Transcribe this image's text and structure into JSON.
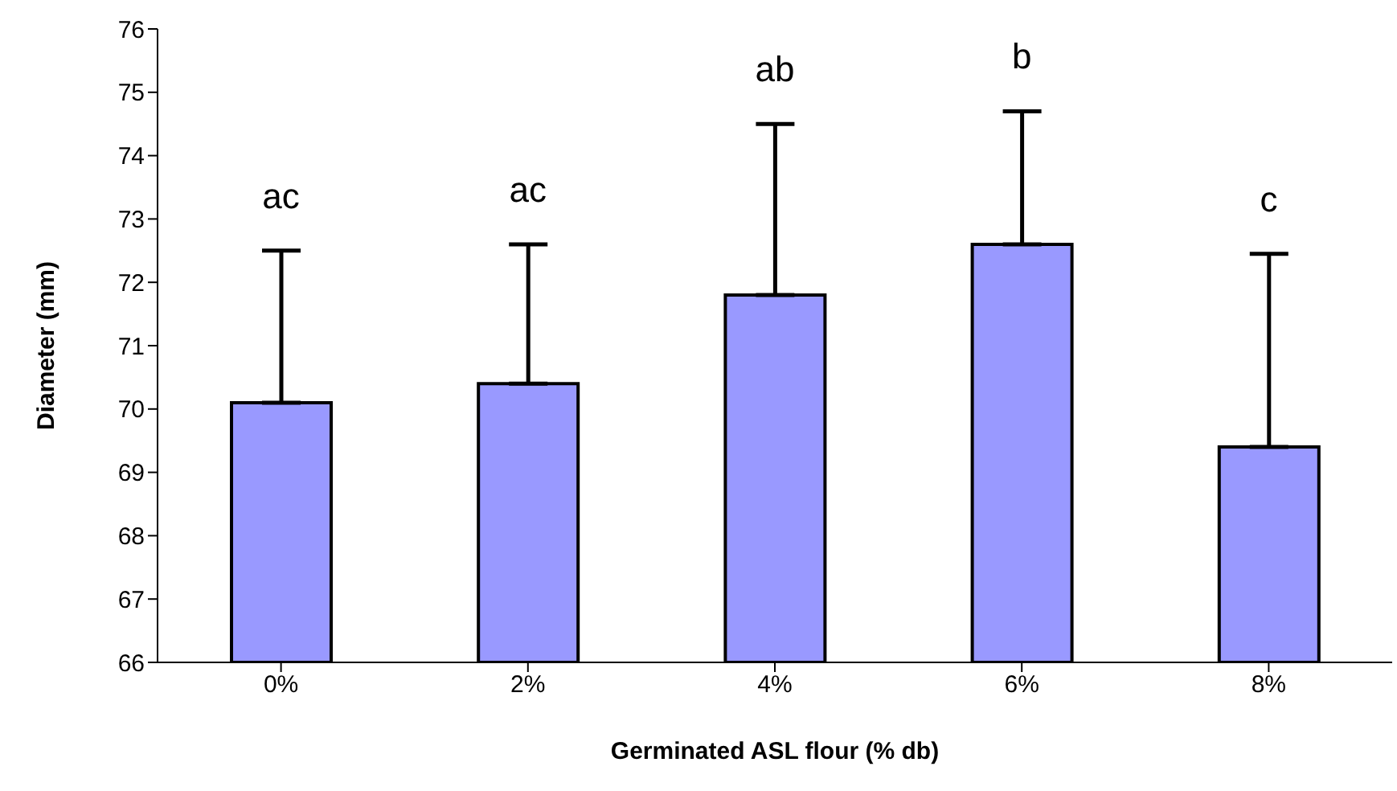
{
  "chart_data": {
    "type": "bar",
    "xlabel": "Germinated ASL flour (% db)",
    "ylabel": "Diameter (mm)",
    "categories": [
      "0%",
      "2%",
      "4%",
      "6%",
      "8%"
    ],
    "values": [
      70.1,
      70.4,
      71.8,
      72.6,
      69.4
    ],
    "errors": [
      [
        70.1,
        72.5
      ],
      [
        70.4,
        72.6
      ],
      [
        71.8,
        74.5
      ],
      [
        72.6,
        74.7
      ],
      [
        69.4,
        72.45
      ]
    ],
    "color": "#9999ff",
    "ylim": [
      66,
      76
    ],
    "yticks": [
      66,
      67,
      68,
      69,
      70,
      71,
      72,
      73,
      74,
      75,
      76
    ],
    "grid": false,
    "legend": false,
    "annotations": [
      "ac",
      "ac",
      "ab",
      "b",
      "c"
    ]
  }
}
